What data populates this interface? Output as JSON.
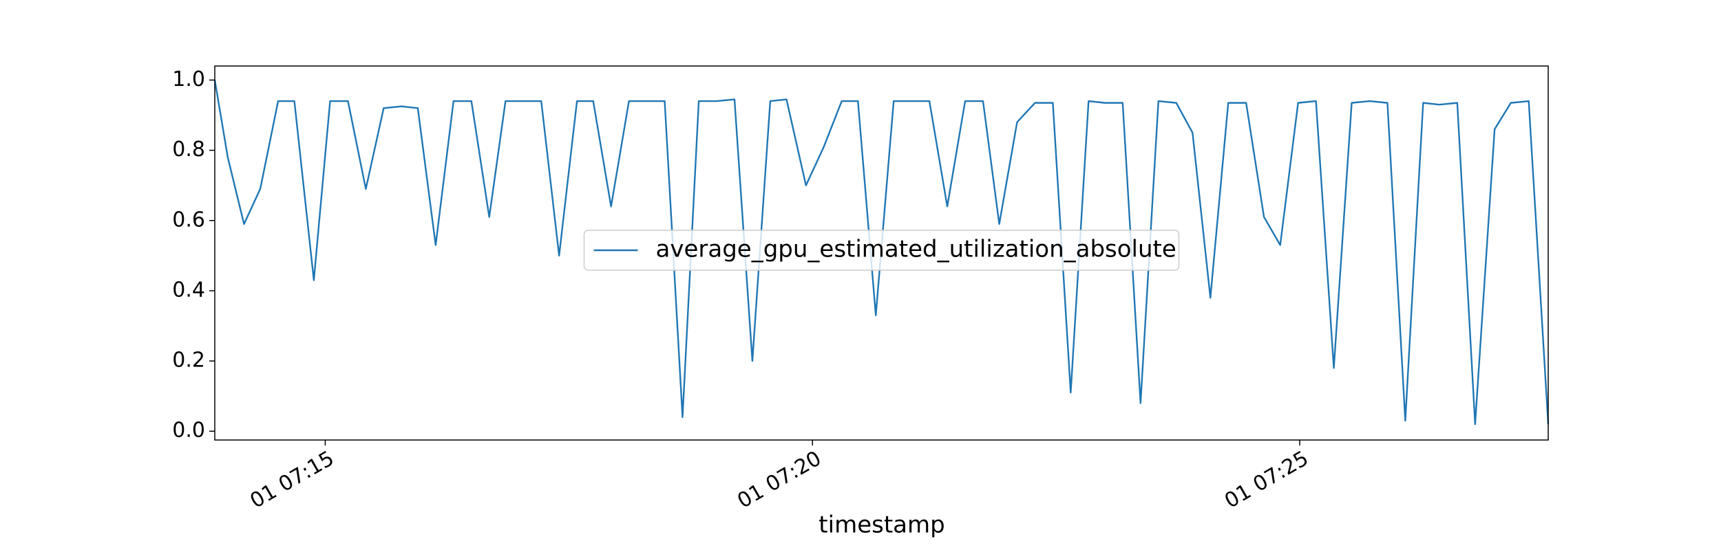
{
  "chart_data": {
    "type": "line",
    "x_label": "timestamp",
    "x": [
      "01 07:13:52",
      "01 07:14:00",
      "01 07:14:10",
      "01 07:14:20",
      "01 07:14:31",
      "01 07:14:41",
      "01 07:14:53",
      "01 07:15:03",
      "01 07:15:14",
      "01 07:15:25",
      "01 07:15:36",
      "01 07:15:47",
      "01 07:15:57",
      "01 07:16:08",
      "01 07:16:19",
      "01 07:16:30",
      "01 07:16:41",
      "01 07:16:51",
      "01 07:17:02",
      "01 07:17:13",
      "01 07:17:24",
      "01 07:17:35",
      "01 07:17:45",
      "01 07:17:56",
      "01 07:18:07",
      "01 07:18:18",
      "01 07:18:29",
      "01 07:18:40",
      "01 07:18:50",
      "01 07:19:01",
      "01 07:19:12",
      "01 07:19:23",
      "01 07:19:34",
      "01 07:19:44",
      "01 07:19:56",
      "01 07:20:07",
      "01 07:20:18",
      "01 07:20:28",
      "01 07:20:39",
      "01 07:20:50",
      "01 07:21:01",
      "01 07:21:12",
      "01 07:21:23",
      "01 07:21:34",
      "01 07:21:45",
      "01 07:21:55",
      "01 07:22:06",
      "01 07:22:17",
      "01 07:22:28",
      "01 07:22:39",
      "01 07:22:50",
      "01 07:23:00",
      "01 07:23:11",
      "01 07:23:22",
      "01 07:23:33",
      "01 07:23:44",
      "01 07:23:54",
      "01 07:24:05",
      "01 07:24:16",
      "01 07:24:27",
      "01 07:24:38",
      "01 07:24:48",
      "01 07:24:59",
      "01 07:25:10",
      "01 07:25:21",
      "01 07:25:32",
      "01 07:25:43",
      "01 07:25:54",
      "01 07:26:05",
      "01 07:26:16",
      "01 07:26:26",
      "01 07:26:37",
      "01 07:26:48",
      "01 07:27:00",
      "01 07:27:10",
      "01 07:27:21",
      "01 07:27:33"
    ],
    "series": [
      {
        "name": "average_gpu_estimated_utilization_absolute",
        "color": "#1f77b4",
        "values": [
          1.0,
          0.78,
          0.59,
          0.69,
          0.94,
          0.94,
          0.43,
          0.94,
          0.94,
          0.69,
          0.92,
          0.925,
          0.92,
          0.53,
          0.94,
          0.94,
          0.61,
          0.94,
          0.94,
          0.94,
          0.5,
          0.94,
          0.94,
          0.64,
          0.94,
          0.94,
          0.94,
          0.04,
          0.94,
          0.94,
          0.945,
          0.2,
          0.94,
          0.945,
          0.7,
          0.81,
          0.94,
          0.94,
          0.33,
          0.94,
          0.94,
          0.94,
          0.64,
          0.94,
          0.94,
          0.59,
          0.88,
          0.935,
          0.935,
          0.11,
          0.94,
          0.935,
          0.935,
          0.08,
          0.94,
          0.935,
          0.85,
          0.38,
          0.935,
          0.935,
          0.61,
          0.53,
          0.935,
          0.94,
          0.18,
          0.935,
          0.94,
          0.935,
          0.03,
          0.935,
          0.93,
          0.935,
          0.02,
          0.86,
          0.935,
          0.94,
          0.02
        ]
      }
    ],
    "xlim": [
      "01 07:13:52",
      "01 07:27:33"
    ],
    "xticks": [
      "01 07:15",
      "01 07:20",
      "01 07:25"
    ],
    "ylim": [
      -0.025,
      1.04
    ],
    "yticks": [
      {
        "value": 0,
        "label": "0.0"
      },
      {
        "value": 0.2,
        "label": "0.2"
      },
      {
        "value": 0.4,
        "label": "0.4"
      },
      {
        "value": 0.6,
        "label": "0.6"
      },
      {
        "value": 0.8,
        "label": "0.8"
      },
      {
        "value": 1,
        "label": "1.0"
      }
    ],
    "legend": "center",
    "grid": false
  }
}
